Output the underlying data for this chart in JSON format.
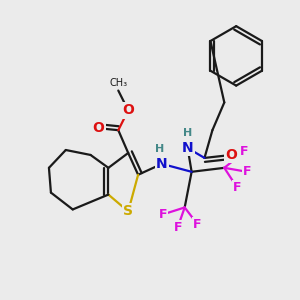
{
  "bg": "#ebebeb",
  "bond_color": "#1a1a1a",
  "lw": 1.6,
  "colors": {
    "C": "#1a1a1a",
    "O": "#dd1111",
    "N": "#1111cc",
    "S": "#ccaa00",
    "F": "#dd11dd",
    "H": "#448888"
  },
  "figsize": [
    3.0,
    3.0
  ],
  "dpi": 100
}
